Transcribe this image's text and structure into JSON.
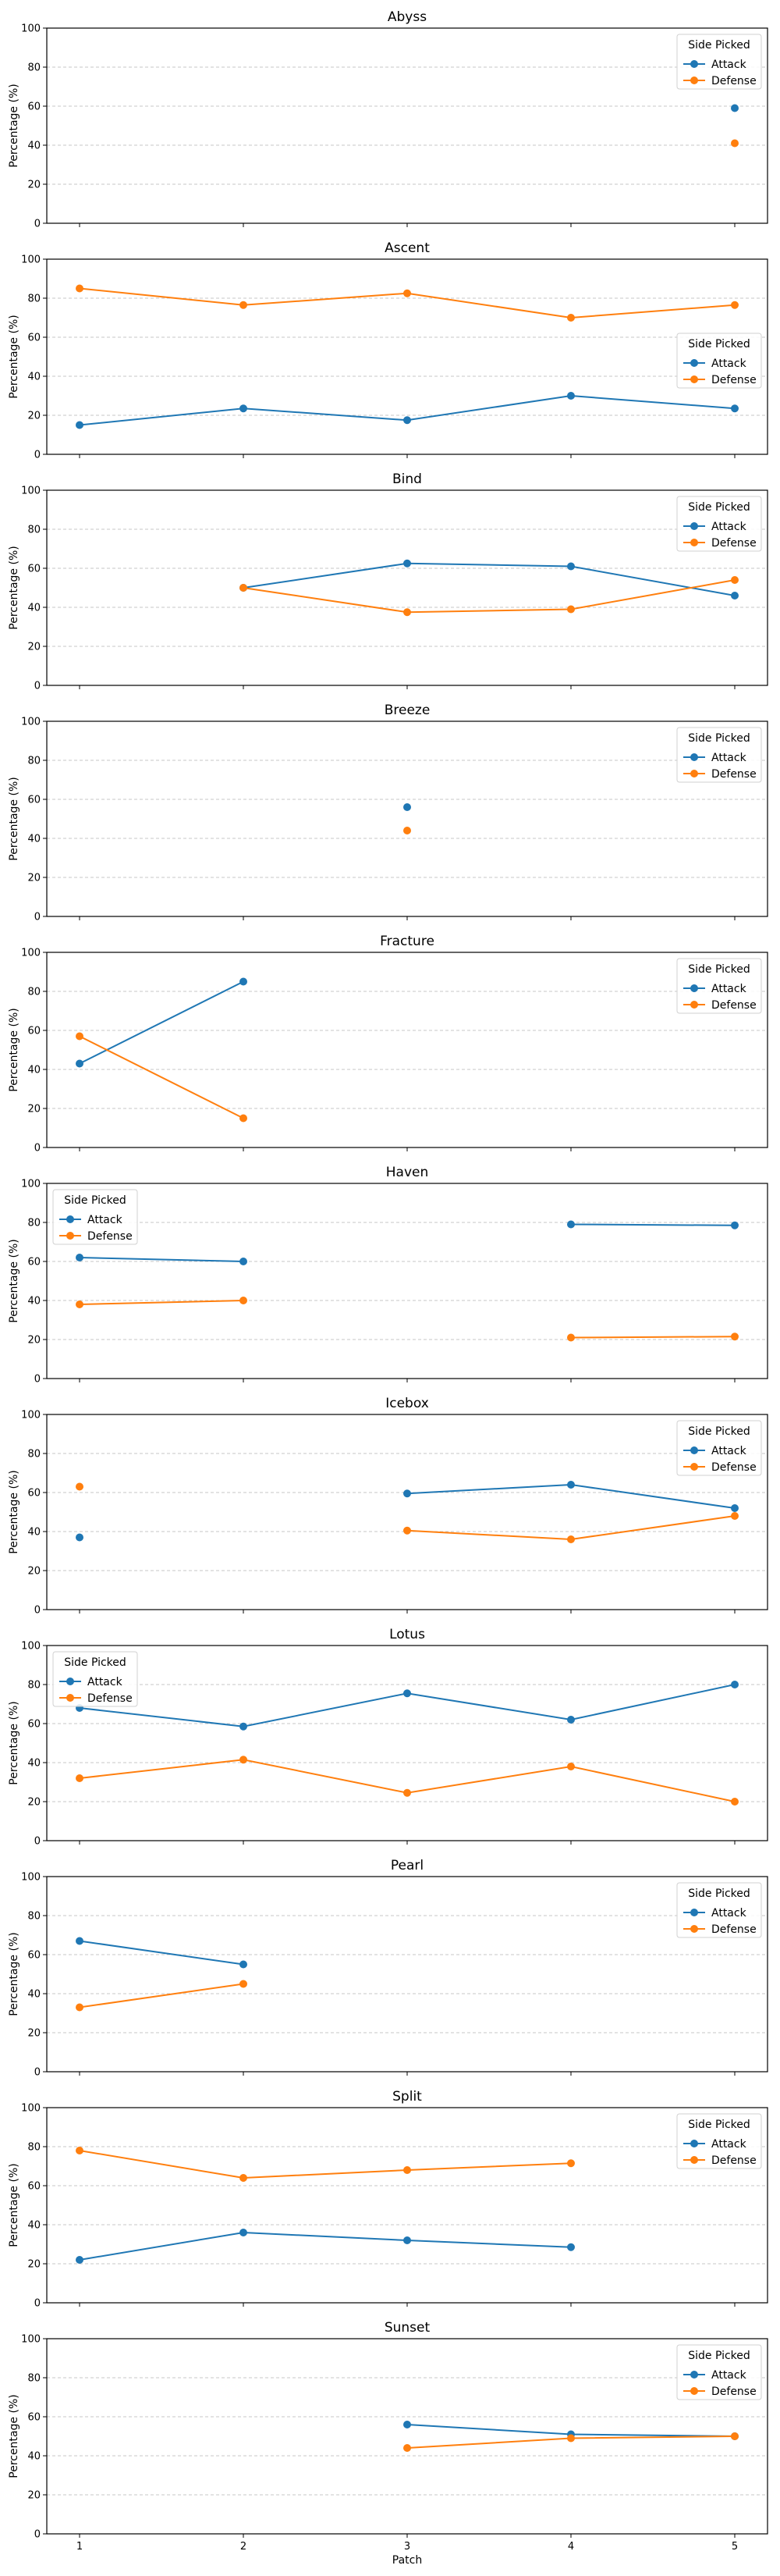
{
  "chart_data": {
    "type": "line",
    "xlabel": "Patch",
    "ylabel": "Percentage (%)",
    "xticks": [
      1,
      2,
      3,
      4,
      5
    ],
    "yticks": [
      0,
      20,
      40,
      60,
      80,
      100
    ],
    "ylim": [
      0,
      100
    ],
    "grid": "y-dashed",
    "legend_title": "Side Picked",
    "series_colors": {
      "Attack": "#1f77b4",
      "Defense": "#ff7f0e"
    },
    "panels": [
      {
        "title": "Abyss",
        "legend": "top-right",
        "series": [
          {
            "name": "Attack",
            "x": [
              5
            ],
            "y": [
              59
            ]
          },
          {
            "name": "Defense",
            "x": [
              5
            ],
            "y": [
              41
            ]
          }
        ]
      },
      {
        "title": "Ascent",
        "legend": "center-right",
        "series": [
          {
            "name": "Attack",
            "x": [
              1,
              2,
              3,
              4,
              5
            ],
            "y": [
              15,
              23.5,
              17.5,
              30,
              23.5
            ]
          },
          {
            "name": "Defense",
            "x": [
              1,
              2,
              3,
              4,
              5
            ],
            "y": [
              85,
              76.5,
              82.5,
              70,
              76.5
            ]
          }
        ]
      },
      {
        "title": "Bind",
        "legend": "top-right",
        "series": [
          {
            "name": "Attack",
            "x": [
              2,
              3,
              4,
              5
            ],
            "y": [
              50,
              62.5,
              61,
              46
            ]
          },
          {
            "name": "Defense",
            "x": [
              2,
              3,
              4,
              5
            ],
            "y": [
              50,
              37.5,
              39,
              54
            ]
          }
        ]
      },
      {
        "title": "Breeze",
        "legend": "top-right",
        "series": [
          {
            "name": "Attack",
            "x": [
              3
            ],
            "y": [
              56
            ]
          },
          {
            "name": "Defense",
            "x": [
              3
            ],
            "y": [
              44
            ]
          }
        ]
      },
      {
        "title": "Fracture",
        "legend": "top-right",
        "series": [
          {
            "name": "Attack",
            "x": [
              1,
              2
            ],
            "y": [
              43,
              85
            ]
          },
          {
            "name": "Defense",
            "x": [
              1,
              2
            ],
            "y": [
              57,
              15
            ]
          }
        ]
      },
      {
        "title": "Haven",
        "legend": "top-left",
        "series": [
          {
            "name": "Attack",
            "x": [
              1,
              2,
              null,
              4,
              5
            ],
            "y": [
              62,
              60,
              null,
              79,
              78.5
            ]
          },
          {
            "name": "Defense",
            "x": [
              1,
              2,
              null,
              4,
              5
            ],
            "y": [
              38,
              40,
              null,
              21,
              21.5
            ]
          }
        ]
      },
      {
        "title": "Icebox",
        "legend": "top-right",
        "series": [
          {
            "name": "Attack",
            "x": [
              1,
              null,
              3,
              4,
              5
            ],
            "y": [
              37,
              null,
              59.5,
              64,
              52
            ]
          },
          {
            "name": "Defense",
            "x": [
              1,
              null,
              3,
              4,
              5
            ],
            "y": [
              63,
              null,
              40.5,
              36,
              48
            ]
          }
        ]
      },
      {
        "title": "Lotus",
        "legend": "top-left",
        "series": [
          {
            "name": "Attack",
            "x": [
              1,
              2,
              3,
              4,
              5
            ],
            "y": [
              68,
              58.5,
              75.5,
              62,
              80
            ]
          },
          {
            "name": "Defense",
            "x": [
              1,
              2,
              3,
              4,
              5
            ],
            "y": [
              32,
              41.5,
              24.5,
              38,
              20
            ]
          }
        ]
      },
      {
        "title": "Pearl",
        "legend": "top-right",
        "series": [
          {
            "name": "Attack",
            "x": [
              1,
              2
            ],
            "y": [
              67,
              55
            ]
          },
          {
            "name": "Defense",
            "x": [
              1,
              2
            ],
            "y": [
              33,
              45
            ]
          }
        ]
      },
      {
        "title": "Split",
        "legend": "top-right",
        "series": [
          {
            "name": "Attack",
            "x": [
              1,
              2,
              3,
              4
            ],
            "y": [
              22,
              36,
              32,
              28.5
            ]
          },
          {
            "name": "Defense",
            "x": [
              1,
              2,
              3,
              4
            ],
            "y": [
              78,
              64,
              68,
              71.5
            ]
          }
        ]
      },
      {
        "title": "Sunset",
        "legend": "top-right",
        "series": [
          {
            "name": "Attack",
            "x": [
              3,
              4,
              5
            ],
            "y": [
              56,
              51,
              50
            ]
          },
          {
            "name": "Defense",
            "x": [
              3,
              4,
              5
            ],
            "y": [
              44,
              49,
              50
            ]
          }
        ]
      }
    ]
  }
}
